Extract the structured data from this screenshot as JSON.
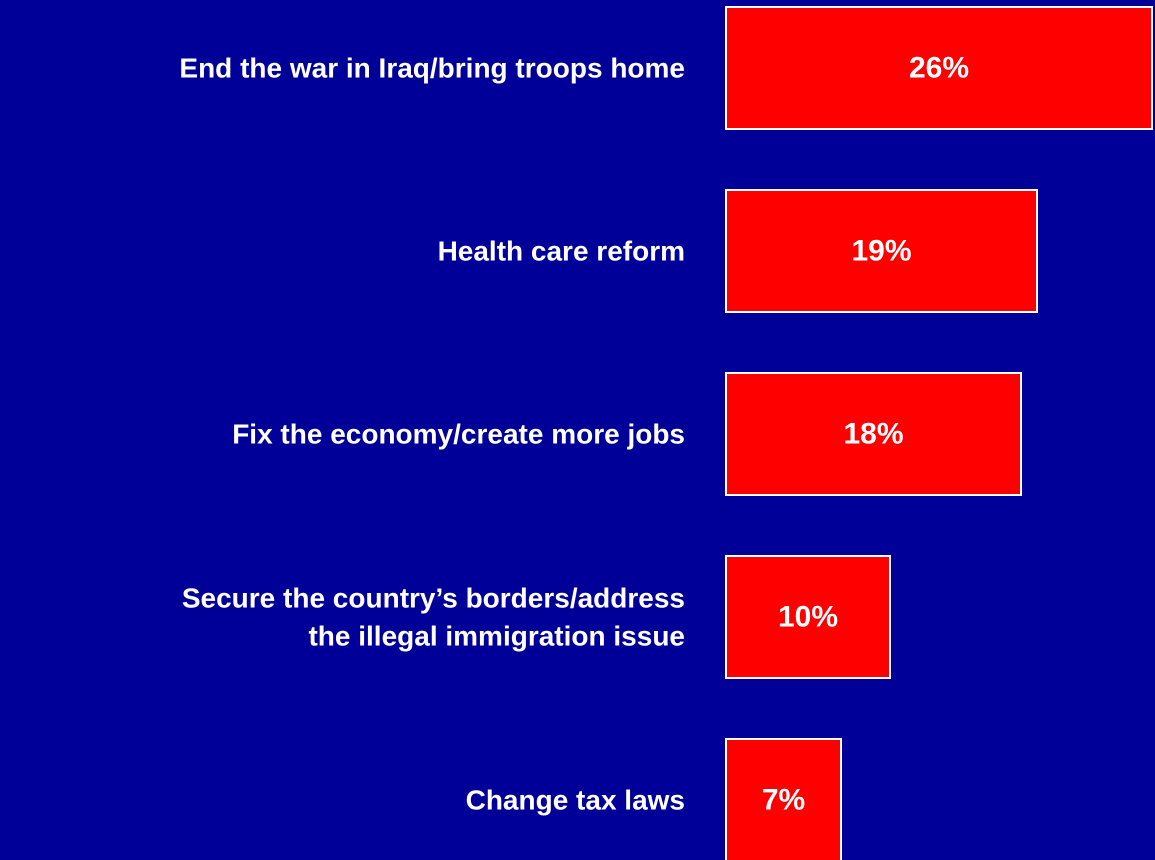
{
  "chart_data": {
    "type": "bar",
    "orientation": "horizontal",
    "categories": [
      [
        "End the war in Iraq/bring troops home"
      ],
      [
        "Health care reform"
      ],
      [
        "Fix the economy/create more jobs"
      ],
      [
        "Secure the country’s borders/address",
        "the illegal immigration issue"
      ],
      [
        "Change tax laws"
      ]
    ],
    "values": [
      26,
      19,
      18,
      10,
      7
    ],
    "value_labels": [
      "26%",
      "19%",
      "18%",
      "10%",
      "7%"
    ],
    "title": "",
    "xlabel": "",
    "ylabel": "",
    "grid": false,
    "legend": "none"
  },
  "colors": {
    "background": "#000099",
    "bar_fill": "#ff0000",
    "bar_border": "#ffffff",
    "text": "#ffffff"
  }
}
